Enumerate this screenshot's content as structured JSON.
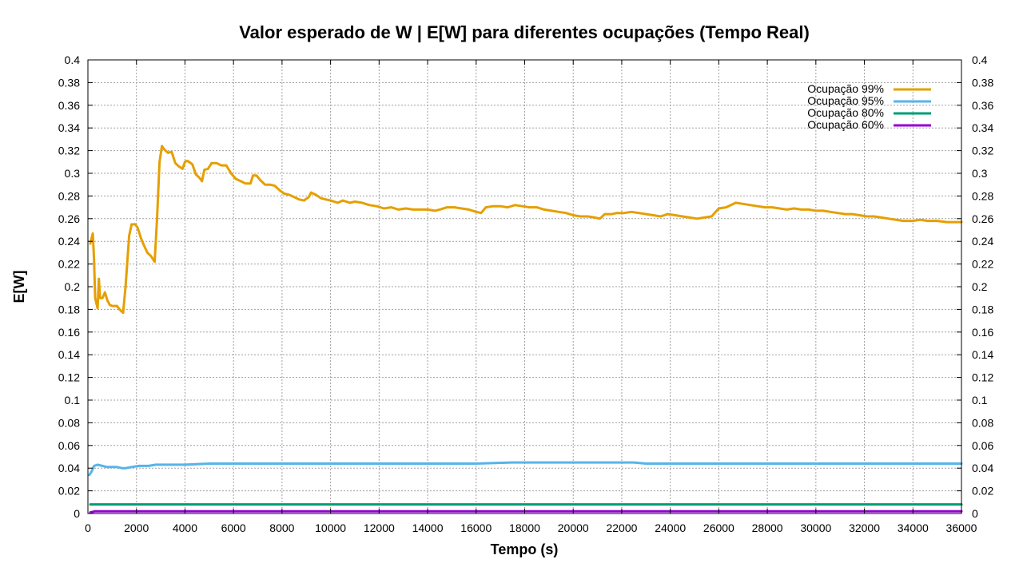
{
  "chart_data": {
    "type": "line",
    "title": "Valor esperado de W | E[W] para diferentes ocupações (Tempo Real)",
    "xlabel": "Tempo (s)",
    "ylabel": "E[W]",
    "xlim": [
      0,
      36000
    ],
    "ylim": [
      0,
      0.4
    ],
    "x_ticks": [
      0,
      2000,
      4000,
      6000,
      8000,
      10000,
      12000,
      14000,
      16000,
      18000,
      20000,
      22000,
      24000,
      26000,
      28000,
      30000,
      32000,
      34000,
      36000
    ],
    "y_ticks": [
      0,
      0.02,
      0.04,
      0.06,
      0.08,
      0.1,
      0.12,
      0.14,
      0.16,
      0.18,
      0.2,
      0.22,
      0.24,
      0.26,
      0.28,
      0.3,
      0.32,
      0.34,
      0.36,
      0.38,
      0.4
    ],
    "x_tick_labels": [
      "0",
      "2000",
      "4000",
      "6000",
      "8000",
      "10000",
      "12000",
      "14000",
      "16000",
      "18000",
      "20000",
      "22000",
      "24000",
      "26000",
      "28000",
      "30000",
      "32000",
      "34000",
      "36000"
    ],
    "y_tick_labels": [
      "0",
      "0.02",
      "0.04",
      "0.06",
      "0.08",
      "0.1",
      "0.12",
      "0.14",
      "0.16",
      "0.18",
      "0.2",
      "0.22",
      "0.24",
      "0.26",
      "0.28",
      "0.3",
      "0.32",
      "0.34",
      "0.36",
      "0.38",
      "0.4"
    ],
    "grid": true,
    "mirror_y_axis": true,
    "legend_position": "top-right",
    "series": [
      {
        "name": "Ocupação 99%",
        "color": "#e69f00",
        "points": [
          [
            100,
            0.238
          ],
          [
            200,
            0.247
          ],
          [
            250,
            0.225
          ],
          [
            300,
            0.19
          ],
          [
            400,
            0.181
          ],
          [
            450,
            0.207
          ],
          [
            500,
            0.19
          ],
          [
            600,
            0.19
          ],
          [
            700,
            0.195
          ],
          [
            800,
            0.188
          ],
          [
            900,
            0.184
          ],
          [
            1000,
            0.183
          ],
          [
            1200,
            0.183
          ],
          [
            1300,
            0.18
          ],
          [
            1450,
            0.177
          ],
          [
            1550,
            0.2
          ],
          [
            1700,
            0.245
          ],
          [
            1800,
            0.255
          ],
          [
            1950,
            0.255
          ],
          [
            2050,
            0.252
          ],
          [
            2200,
            0.242
          ],
          [
            2300,
            0.237
          ],
          [
            2450,
            0.23
          ],
          [
            2600,
            0.227
          ],
          [
            2750,
            0.222
          ],
          [
            2850,
            0.26
          ],
          [
            2950,
            0.31
          ],
          [
            3050,
            0.324
          ],
          [
            3150,
            0.321
          ],
          [
            3300,
            0.318
          ],
          [
            3450,
            0.319
          ],
          [
            3600,
            0.309
          ],
          [
            3750,
            0.306
          ],
          [
            3900,
            0.304
          ],
          [
            4000,
            0.31
          ],
          [
            4100,
            0.311
          ],
          [
            4300,
            0.308
          ],
          [
            4450,
            0.299
          ],
          [
            4600,
            0.296
          ],
          [
            4700,
            0.293
          ],
          [
            4800,
            0.303
          ],
          [
            4950,
            0.304
          ],
          [
            5100,
            0.309
          ],
          [
            5300,
            0.309
          ],
          [
            5500,
            0.307
          ],
          [
            5700,
            0.307
          ],
          [
            5900,
            0.3
          ],
          [
            6100,
            0.295
          ],
          [
            6300,
            0.293
          ],
          [
            6500,
            0.291
          ],
          [
            6700,
            0.291
          ],
          [
            6800,
            0.298
          ],
          [
            6950,
            0.298
          ],
          [
            7100,
            0.294
          ],
          [
            7300,
            0.29
          ],
          [
            7500,
            0.29
          ],
          [
            7700,
            0.289
          ],
          [
            7900,
            0.285
          ],
          [
            8100,
            0.282
          ],
          [
            8300,
            0.281
          ],
          [
            8500,
            0.279
          ],
          [
            8700,
            0.277
          ],
          [
            8900,
            0.276
          ],
          [
            9100,
            0.279
          ],
          [
            9200,
            0.283
          ],
          [
            9400,
            0.281
          ],
          [
            9600,
            0.278
          ],
          [
            9800,
            0.277
          ],
          [
            10000,
            0.276
          ],
          [
            10300,
            0.274
          ],
          [
            10500,
            0.276
          ],
          [
            10800,
            0.274
          ],
          [
            11000,
            0.275
          ],
          [
            11300,
            0.274
          ],
          [
            11600,
            0.272
          ],
          [
            11900,
            0.271
          ],
          [
            12200,
            0.269
          ],
          [
            12500,
            0.27
          ],
          [
            12800,
            0.268
          ],
          [
            13100,
            0.269
          ],
          [
            13400,
            0.268
          ],
          [
            13700,
            0.268
          ],
          [
            14000,
            0.268
          ],
          [
            14300,
            0.267
          ],
          [
            14500,
            0.268
          ],
          [
            14800,
            0.27
          ],
          [
            15100,
            0.27
          ],
          [
            15400,
            0.269
          ],
          [
            15700,
            0.268
          ],
          [
            16000,
            0.266
          ],
          [
            16200,
            0.265
          ],
          [
            16400,
            0.27
          ],
          [
            16700,
            0.271
          ],
          [
            17000,
            0.271
          ],
          [
            17300,
            0.27
          ],
          [
            17600,
            0.272
          ],
          [
            17900,
            0.271
          ],
          [
            18200,
            0.27
          ],
          [
            18500,
            0.27
          ],
          [
            18800,
            0.268
          ],
          [
            19100,
            0.267
          ],
          [
            19400,
            0.266
          ],
          [
            19700,
            0.265
          ],
          [
            20000,
            0.263
          ],
          [
            20300,
            0.262
          ],
          [
            20600,
            0.262
          ],
          [
            20900,
            0.261
          ],
          [
            21100,
            0.26
          ],
          [
            21300,
            0.264
          ],
          [
            21600,
            0.264
          ],
          [
            21800,
            0.265
          ],
          [
            22100,
            0.265
          ],
          [
            22400,
            0.266
          ],
          [
            22700,
            0.265
          ],
          [
            23000,
            0.264
          ],
          [
            23300,
            0.263
          ],
          [
            23600,
            0.262
          ],
          [
            23900,
            0.264
          ],
          [
            24200,
            0.263
          ],
          [
            24500,
            0.262
          ],
          [
            24800,
            0.261
          ],
          [
            25100,
            0.26
          ],
          [
            25400,
            0.261
          ],
          [
            25700,
            0.262
          ],
          [
            26000,
            0.269
          ],
          [
            26300,
            0.27
          ],
          [
            26500,
            0.272
          ],
          [
            26700,
            0.274
          ],
          [
            27000,
            0.273
          ],
          [
            27300,
            0.272
          ],
          [
            27600,
            0.271
          ],
          [
            27900,
            0.27
          ],
          [
            28200,
            0.27
          ],
          [
            28500,
            0.269
          ],
          [
            28800,
            0.268
          ],
          [
            29100,
            0.269
          ],
          [
            29400,
            0.268
          ],
          [
            29700,
            0.268
          ],
          [
            30000,
            0.267
          ],
          [
            30300,
            0.267
          ],
          [
            30600,
            0.266
          ],
          [
            30900,
            0.265
          ],
          [
            31200,
            0.264
          ],
          [
            31500,
            0.264
          ],
          [
            31800,
            0.263
          ],
          [
            32100,
            0.262
          ],
          [
            32400,
            0.262
          ],
          [
            32700,
            0.261
          ],
          [
            33000,
            0.26
          ],
          [
            33300,
            0.259
          ],
          [
            33600,
            0.258
          ],
          [
            34000,
            0.258
          ],
          [
            34300,
            0.259
          ],
          [
            34600,
            0.258
          ],
          [
            35000,
            0.258
          ],
          [
            35400,
            0.257
          ],
          [
            35700,
            0.257
          ],
          [
            36000,
            0.257
          ]
        ]
      },
      {
        "name": "Ocupação 95%",
        "color": "#56b4e9",
        "points": [
          [
            60,
            0.034
          ],
          [
            150,
            0.037
          ],
          [
            250,
            0.042
          ],
          [
            400,
            0.043
          ],
          [
            600,
            0.042
          ],
          [
            800,
            0.041
          ],
          [
            1000,
            0.041
          ],
          [
            1200,
            0.041
          ],
          [
            1400,
            0.04
          ],
          [
            1550,
            0.04
          ],
          [
            1800,
            0.041
          ],
          [
            2100,
            0.042
          ],
          [
            2500,
            0.042
          ],
          [
            2800,
            0.043
          ],
          [
            3000,
            0.043
          ],
          [
            3500,
            0.043
          ],
          [
            4000,
            0.043
          ],
          [
            5000,
            0.044
          ],
          [
            6000,
            0.044
          ],
          [
            8000,
            0.044
          ],
          [
            10000,
            0.044
          ],
          [
            12000,
            0.044
          ],
          [
            14000,
            0.044
          ],
          [
            16000,
            0.044
          ],
          [
            17500,
            0.045
          ],
          [
            19000,
            0.045
          ],
          [
            20000,
            0.045
          ],
          [
            21500,
            0.045
          ],
          [
            22500,
            0.045
          ],
          [
            23000,
            0.044
          ],
          [
            25000,
            0.044
          ],
          [
            27000,
            0.044
          ],
          [
            29000,
            0.044
          ],
          [
            31000,
            0.044
          ],
          [
            33000,
            0.044
          ],
          [
            36000,
            0.044
          ]
        ]
      },
      {
        "name": "Ocupação 80%",
        "color": "#009e73",
        "points": [
          [
            100,
            0.008
          ],
          [
            400,
            0.008
          ],
          [
            2000,
            0.008
          ],
          [
            10000,
            0.008
          ],
          [
            20000,
            0.008
          ],
          [
            30000,
            0.008
          ],
          [
            36000,
            0.008
          ]
        ]
      },
      {
        "name": "Ocupação 60%",
        "color": "#9400d3",
        "points": [
          [
            100,
            0.001
          ],
          [
            300,
            0.002
          ],
          [
            1000,
            0.002
          ],
          [
            5000,
            0.002
          ],
          [
            15000,
            0.002
          ],
          [
            25000,
            0.002
          ],
          [
            36000,
            0.002
          ]
        ]
      }
    ]
  }
}
